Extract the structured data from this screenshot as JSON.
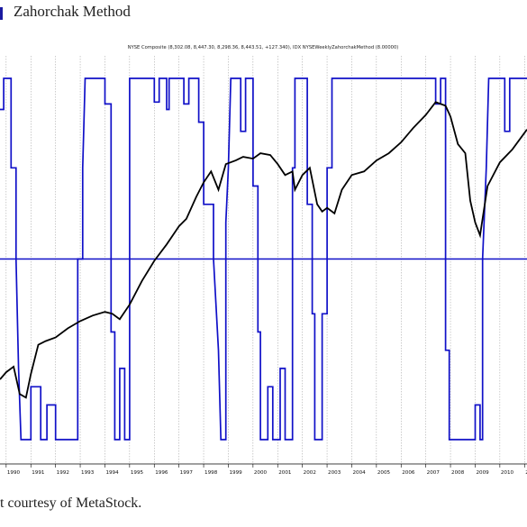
{
  "figure": {
    "title": "Zahorchak Method",
    "caption": "t courtesy of MetaStock."
  },
  "chart_data": {
    "type": "line",
    "legend_text": "NYSE Composite (8,302.08, 8,447.30, 8,298.36, 8,443.51, +127.340), IDX NYSEWeeklyZahorchakMethod (8.00000)",
    "x_tick_labels": [
      "1990",
      "1991",
      "1992",
      "1993",
      "1994",
      "1995",
      "1996",
      "1997",
      "1998",
      "1999",
      "2000",
      "2001",
      "2002",
      "2003",
      "2004",
      "2005",
      "2006",
      "2007",
      "2008",
      "2009",
      "2010",
      "20"
    ],
    "x_range": [
      1989.75,
      2011.1
    ],
    "grid": true,
    "reference_line": {
      "y": 0,
      "color": "#1010c8"
    },
    "series": [
      {
        "id": "nyse",
        "color": "#000000",
        "points": [
          [
            1989.75,
            -0.66
          ],
          [
            1990.0,
            -0.62
          ],
          [
            1990.3,
            -0.59
          ],
          [
            1990.55,
            -0.74
          ],
          [
            1990.8,
            -0.76
          ],
          [
            1991.0,
            -0.63
          ],
          [
            1991.3,
            -0.47
          ],
          [
            1991.6,
            -0.45
          ],
          [
            1992.0,
            -0.43
          ],
          [
            1992.5,
            -0.38
          ],
          [
            1993.0,
            -0.34
          ],
          [
            1993.5,
            -0.31
          ],
          [
            1994.0,
            -0.29
          ],
          [
            1994.3,
            -0.3
          ],
          [
            1994.6,
            -0.33
          ],
          [
            1995.0,
            -0.25
          ],
          [
            1995.5,
            -0.12
          ],
          [
            1996.0,
            -0.01
          ],
          [
            1996.5,
            0.08
          ],
          [
            1997.0,
            0.18
          ],
          [
            1997.3,
            0.22
          ],
          [
            1997.7,
            0.34
          ],
          [
            1998.0,
            0.42
          ],
          [
            1998.3,
            0.48
          ],
          [
            1998.6,
            0.38
          ],
          [
            1998.9,
            0.52
          ],
          [
            1999.3,
            0.54
          ],
          [
            1999.6,
            0.56
          ],
          [
            2000.0,
            0.55
          ],
          [
            2000.3,
            0.58
          ],
          [
            2000.7,
            0.57
          ],
          [
            2001.0,
            0.52
          ],
          [
            2001.3,
            0.46
          ],
          [
            2001.6,
            0.48
          ],
          [
            2001.7,
            0.38
          ],
          [
            2002.0,
            0.46
          ],
          [
            2002.3,
            0.5
          ],
          [
            2002.6,
            0.3
          ],
          [
            2002.8,
            0.26
          ],
          [
            2003.0,
            0.28
          ],
          [
            2003.3,
            0.25
          ],
          [
            2003.6,
            0.38
          ],
          [
            2004.0,
            0.46
          ],
          [
            2004.5,
            0.48
          ],
          [
            2005.0,
            0.54
          ],
          [
            2005.5,
            0.58
          ],
          [
            2006.0,
            0.64
          ],
          [
            2006.5,
            0.72
          ],
          [
            2007.0,
            0.79
          ],
          [
            2007.4,
            0.86
          ],
          [
            2007.8,
            0.84
          ],
          [
            2008.0,
            0.78
          ],
          [
            2008.3,
            0.63
          ],
          [
            2008.6,
            0.58
          ],
          [
            2008.8,
            0.32
          ],
          [
            2009.0,
            0.2
          ],
          [
            2009.2,
            0.13
          ],
          [
            2009.5,
            0.4
          ],
          [
            2010.0,
            0.53
          ],
          [
            2010.5,
            0.6
          ],
          [
            2011.1,
            0.71
          ]
        ]
      },
      {
        "id": "zahorchak",
        "color": "#1010c8",
        "points": [
          [
            1989.75,
            0.82
          ],
          [
            1989.9,
            0.82
          ],
          [
            1989.9,
            0.99
          ],
          [
            1990.2,
            0.99
          ],
          [
            1990.2,
            0.5
          ],
          [
            1990.4,
            0.5
          ],
          [
            1990.4,
            0.0
          ],
          [
            1990.5,
            -0.6
          ],
          [
            1990.6,
            -0.99
          ],
          [
            1991.0,
            -0.99
          ],
          [
            1991.0,
            -0.7
          ],
          [
            1991.4,
            -0.7
          ],
          [
            1991.4,
            -0.99
          ],
          [
            1991.65,
            -0.99
          ],
          [
            1991.65,
            -0.8
          ],
          [
            1992.0,
            -0.8
          ],
          [
            1992.0,
            -0.99
          ],
          [
            1992.9,
            -0.99
          ],
          [
            1992.9,
            0.0
          ],
          [
            1993.1,
            0.0
          ],
          [
            1993.1,
            0.5
          ],
          [
            1993.2,
            0.99
          ],
          [
            1994.0,
            0.99
          ],
          [
            1994.0,
            0.85
          ],
          [
            1994.25,
            0.85
          ],
          [
            1994.25,
            -0.4
          ],
          [
            1994.4,
            -0.4
          ],
          [
            1994.4,
            -0.99
          ],
          [
            1994.6,
            -0.99
          ],
          [
            1994.6,
            -0.6
          ],
          [
            1994.8,
            -0.6
          ],
          [
            1994.8,
            -0.99
          ],
          [
            1995.0,
            -0.99
          ],
          [
            1995.0,
            0.99
          ],
          [
            1996.0,
            0.99
          ],
          [
            1996.0,
            0.86
          ],
          [
            1996.2,
            0.86
          ],
          [
            1996.2,
            0.99
          ],
          [
            1996.5,
            0.99
          ],
          [
            1996.5,
            0.82
          ],
          [
            1996.6,
            0.82
          ],
          [
            1996.6,
            0.99
          ],
          [
            1997.2,
            0.99
          ],
          [
            1997.2,
            0.85
          ],
          [
            1997.4,
            0.85
          ],
          [
            1997.4,
            0.99
          ],
          [
            1997.8,
            0.99
          ],
          [
            1997.8,
            0.75
          ],
          [
            1998.0,
            0.75
          ],
          [
            1998.0,
            0.3
          ],
          [
            1998.4,
            0.3
          ],
          [
            1998.4,
            0.0
          ],
          [
            1998.6,
            -0.5
          ],
          [
            1998.7,
            -0.99
          ],
          [
            1998.9,
            -0.99
          ],
          [
            1998.9,
            0.2
          ],
          [
            1999.0,
            0.5
          ],
          [
            1999.1,
            0.99
          ],
          [
            1999.5,
            0.99
          ],
          [
            1999.5,
            0.7
          ],
          [
            1999.7,
            0.7
          ],
          [
            1999.7,
            0.99
          ],
          [
            2000.0,
            0.99
          ],
          [
            2000.0,
            0.4
          ],
          [
            2000.2,
            0.4
          ],
          [
            2000.2,
            -0.4
          ],
          [
            2000.3,
            -0.4
          ],
          [
            2000.3,
            -0.99
          ],
          [
            2000.6,
            -0.99
          ],
          [
            2000.6,
            -0.7
          ],
          [
            2000.8,
            -0.7
          ],
          [
            2000.8,
            -0.99
          ],
          [
            2001.1,
            -0.99
          ],
          [
            2001.1,
            -0.6
          ],
          [
            2001.3,
            -0.6
          ],
          [
            2001.3,
            -0.99
          ],
          [
            2001.6,
            -0.99
          ],
          [
            2001.6,
            0.5
          ],
          [
            2001.7,
            0.5
          ],
          [
            2001.7,
            0.99
          ],
          [
            2002.2,
            0.99
          ],
          [
            2002.2,
            0.3
          ],
          [
            2002.4,
            0.3
          ],
          [
            2002.4,
            -0.3
          ],
          [
            2002.5,
            -0.3
          ],
          [
            2002.5,
            -0.99
          ],
          [
            2002.8,
            -0.99
          ],
          [
            2002.8,
            -0.3
          ],
          [
            2003.0,
            -0.3
          ],
          [
            2003.0,
            0.5
          ],
          [
            2003.2,
            0.5
          ],
          [
            2003.2,
            0.99
          ],
          [
            2007.4,
            0.99
          ],
          [
            2007.4,
            0.85
          ],
          [
            2007.6,
            0.85
          ],
          [
            2007.6,
            0.99
          ],
          [
            2007.8,
            0.99
          ],
          [
            2007.8,
            -0.5
          ],
          [
            2007.95,
            -0.5
          ],
          [
            2007.95,
            -0.99
          ],
          [
            2009.0,
            -0.99
          ],
          [
            2009.0,
            -0.8
          ],
          [
            2009.2,
            -0.8
          ],
          [
            2009.2,
            -0.99
          ],
          [
            2009.3,
            -0.99
          ],
          [
            2009.3,
            0.0
          ],
          [
            2009.45,
            0.5
          ],
          [
            2009.55,
            0.99
          ],
          [
            2010.2,
            0.99
          ],
          [
            2010.2,
            0.7
          ],
          [
            2010.4,
            0.7
          ],
          [
            2010.4,
            0.99
          ],
          [
            2011.1,
            0.99
          ]
        ]
      }
    ]
  }
}
